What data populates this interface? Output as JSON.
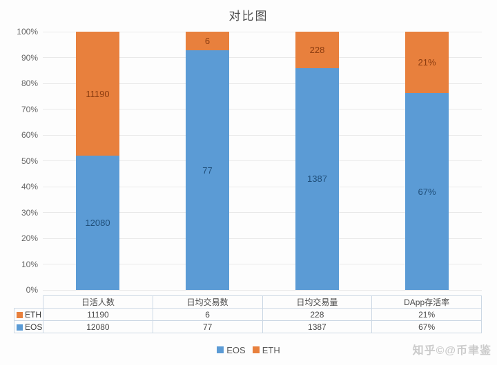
{
  "watermark": "知乎©@币聿鉴",
  "colors": {
    "eos": "#5b9bd5",
    "eth": "#e8803d",
    "eos_label": "#1f4e79",
    "eth_label": "#8b3c10",
    "grid": "#e9e9e9",
    "axis_text": "#666666",
    "table_border": "#ccd8e4",
    "legend_text": "#595959",
    "watermark": "#cbcbcb",
    "background": "#fdfdfd"
  },
  "chart_data": {
    "type": "bar",
    "variant": "100pct-stacked-column",
    "title": "对比图",
    "categories": [
      "日活人数",
      "日均交易数",
      "日均交易量",
      "DApp存活率"
    ],
    "series": [
      {
        "name": "EOS",
        "color": "#5b9bd5",
        "label_color": "#1f4e79",
        "values": [
          12080,
          77,
          1387,
          67
        ],
        "labels": [
          "12080",
          "77",
          "1387",
          "67%"
        ]
      },
      {
        "name": "ETH",
        "color": "#e8803d",
        "label_color": "#8b3c10",
        "values": [
          11190,
          6,
          228,
          21
        ],
        "labels": [
          "11190",
          "6",
          "228",
          "21%"
        ]
      }
    ],
    "ylim": [
      0,
      100
    ],
    "ytick_labels": [
      "0%",
      "10%",
      "20%",
      "30%",
      "40%",
      "50%",
      "60%",
      "70%",
      "80%",
      "90%",
      "100%"
    ],
    "grid": true,
    "legend_position": "bottom",
    "legend_items": [
      "EOS",
      "ETH"
    ]
  },
  "table": {
    "corner_label": "",
    "headers": [
      "日活人数",
      "日均交易数",
      "日均交易量",
      "DApp存活率"
    ],
    "rows": [
      {
        "key": "ETH",
        "values": [
          "11190",
          "6",
          "228",
          "21%"
        ]
      },
      {
        "key": "EOS",
        "values": [
          "12080",
          "77",
          "1387",
          "67%"
        ]
      }
    ]
  }
}
